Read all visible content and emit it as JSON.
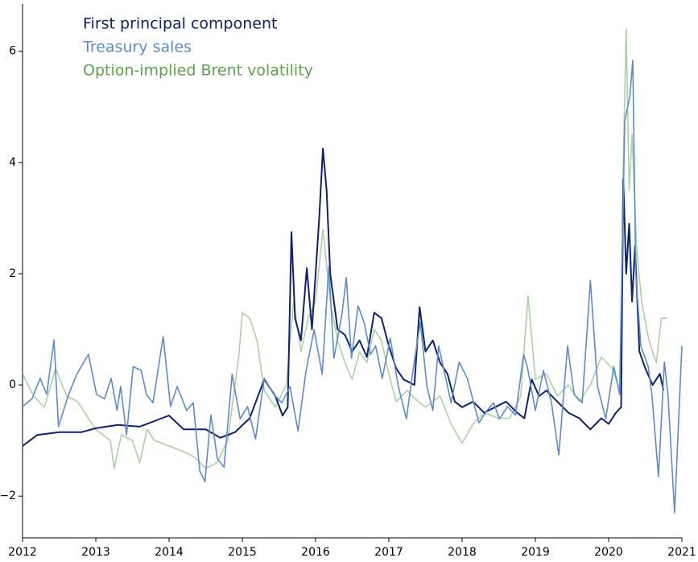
{
  "chart_data": {
    "type": "line",
    "xlim": [
      2012,
      2021
    ],
    "xticks": [
      2012,
      2013,
      2014,
      2015,
      2016,
      2017,
      2018,
      2019,
      2020,
      2021
    ],
    "ylim": [
      -2.75,
      6.85
    ],
    "yticks": [
      {
        "value": -2,
        "label": "−2"
      },
      0,
      2,
      4,
      6
    ],
    "grid": false,
    "legend": "upper left",
    "series": [
      {
        "name": "First principal component",
        "color": "#0d2270",
        "x": [
          2012.0,
          2012.2,
          2012.5,
          2012.8,
          2013.0,
          2013.3,
          2013.6,
          2013.9,
          2014.0,
          2014.2,
          2014.5,
          2014.7,
          2014.9,
          2015.1,
          2015.3,
          2015.45,
          2015.55,
          2015.62,
          2015.67,
          2015.72,
          2015.8,
          2015.88,
          2015.95,
          2016.0,
          2016.05,
          2016.1,
          2016.15,
          2016.2,
          2016.3,
          2016.4,
          2016.5,
          2016.6,
          2016.7,
          2016.8,
          2016.9,
          2017.0,
          2017.1,
          2017.2,
          2017.35,
          2017.42,
          2017.5,
          2017.6,
          2017.7,
          2017.8,
          2017.9,
          2018.0,
          2018.15,
          2018.3,
          2018.45,
          2018.6,
          2018.75,
          2018.85,
          2018.95,
          2019.05,
          2019.15,
          2019.3,
          2019.45,
          2019.6,
          2019.75,
          2019.9,
          2020.0,
          2020.1,
          2020.17,
          2020.2,
          2020.24,
          2020.28,
          2020.32,
          2020.36,
          2020.42,
          2020.5,
          2020.6,
          2020.7,
          2020.75
        ],
        "values": [
          -1.1,
          -0.9,
          -0.85,
          -0.85,
          -0.78,
          -0.72,
          -0.75,
          -0.6,
          -0.55,
          -0.8,
          -0.8,
          -0.95,
          -0.85,
          -0.6,
          0.1,
          -0.2,
          -0.55,
          -0.4,
          2.75,
          1.2,
          0.8,
          2.1,
          1.0,
          2.0,
          3.0,
          4.25,
          3.5,
          2.0,
          1.0,
          0.9,
          0.6,
          0.8,
          0.5,
          1.3,
          1.2,
          0.7,
          0.3,
          0.1,
          0.0,
          1.4,
          0.6,
          0.8,
          0.4,
          0.2,
          -0.3,
          -0.4,
          -0.3,
          -0.5,
          -0.4,
          -0.3,
          -0.5,
          -0.6,
          0.1,
          -0.2,
          -0.1,
          -0.3,
          -0.5,
          -0.6,
          -0.8,
          -0.6,
          -0.7,
          -0.5,
          -0.4,
          3.7,
          2.0,
          2.9,
          1.5,
          2.5,
          0.6,
          0.3,
          0.0,
          0.2,
          -0.1
        ]
      },
      {
        "name": "Treasury sales",
        "color": "#5b8bd0",
        "x": [
          2012.0,
          2012.13,
          2012.24,
          2012.33,
          2012.43,
          2012.49,
          2012.63,
          2012.74,
          2012.9,
          2013.01,
          2013.12,
          2013.21,
          2013.29,
          2013.34,
          2013.42,
          2013.51,
          2013.62,
          2013.69,
          2013.78,
          2013.92,
          2014.02,
          2014.11,
          2014.24,
          2014.33,
          2014.42,
          2014.49,
          2014.57,
          2014.66,
          2014.75,
          2014.86,
          2014.97,
          2015.07,
          2015.18,
          2015.3,
          2015.43,
          2015.54,
          2015.65,
          2015.76,
          2015.87,
          2015.98,
          2016.09,
          2016.18,
          2016.25,
          2016.36,
          2016.42,
          2016.49,
          2016.58,
          2016.66,
          2016.75,
          2016.82,
          2016.91,
          2017.02,
          2017.13,
          2017.24,
          2017.33,
          2017.43,
          2017.52,
          2017.6,
          2017.68,
          2017.85,
          2017.96,
          2018.07,
          2018.23,
          2018.34,
          2018.43,
          2018.51,
          2018.62,
          2018.73,
          2018.84,
          2018.89,
          2019.0,
          2019.11,
          2019.22,
          2019.32,
          2019.44,
          2019.53,
          2019.64,
          2019.75,
          2019.85,
          2019.96,
          2020.07,
          2020.15,
          2020.22,
          2020.29,
          2020.33,
          2020.37,
          2020.44,
          2020.54,
          2020.59,
          2020.68,
          2020.76,
          2020.81,
          2020.9,
          2021.0
        ],
        "values": [
          -0.39,
          -0.25,
          0.12,
          -0.17,
          0.81,
          -0.75,
          -0.17,
          0.19,
          0.55,
          -0.17,
          -0.25,
          0.12,
          -0.46,
          -0.03,
          -0.9,
          0.33,
          0.26,
          -0.17,
          -0.32,
          0.87,
          -0.39,
          -0.03,
          -0.46,
          -0.32,
          -1.55,
          -1.74,
          -0.54,
          -1.33,
          -1.48,
          0.19,
          -0.61,
          -0.39,
          -0.97,
          0.12,
          -0.17,
          -0.32,
          -0.03,
          -0.83,
          0.26,
          0.99,
          0.19,
          2.14,
          0.48,
          1.28,
          1.93,
          0.48,
          1.42,
          1.13,
          0.55,
          0.7,
          0.12,
          0.84,
          -0.03,
          -0.61,
          0.26,
          1.13,
          -0.03,
          -0.46,
          0.7,
          -0.32,
          0.41,
          0.12,
          -0.68,
          -0.46,
          -0.32,
          -0.61,
          -0.39,
          -0.54,
          0.55,
          0.33,
          -0.46,
          0.26,
          -0.32,
          -1.26,
          0.7,
          -0.17,
          -0.32,
          1.88,
          -0.03,
          -0.61,
          0.33,
          -0.17,
          4.75,
          5.19,
          5.84,
          2.0,
          0.7,
          0.33,
          -0.17,
          -1.65,
          0.41,
          -0.17,
          -2.3,
          0.7
        ]
      },
      {
        "name": "Option-implied Brent volatility",
        "color": "#5aa548",
        "x": [
          2012.0,
          2012.15,
          2012.3,
          2012.45,
          2012.6,
          2012.75,
          2012.9,
          2013.0,
          2013.2,
          2013.25,
          2013.35,
          2013.5,
          2013.6,
          2013.7,
          2013.8,
          2014.0,
          2014.2,
          2014.35,
          2014.5,
          2014.65,
          2014.8,
          2014.95,
          2015.0,
          2015.1,
          2015.2,
          2015.3,
          2015.45,
          2015.6,
          2015.7,
          2015.8,
          2015.9,
          2016.0,
          2016.1,
          2016.2,
          2016.3,
          2016.4,
          2016.5,
          2016.6,
          2016.7,
          2016.8,
          2016.9,
          2017.0,
          2017.1,
          2017.25,
          2017.4,
          2017.5,
          2017.7,
          2017.85,
          2018.0,
          2018.15,
          2018.3,
          2018.5,
          2018.65,
          2018.8,
          2018.9,
          2019.0,
          2019.15,
          2019.3,
          2019.45,
          2019.6,
          2019.75,
          2019.9,
          2020.05,
          2020.15,
          2020.2,
          2020.24,
          2020.28,
          2020.32,
          2020.38,
          2020.45,
          2020.55,
          2020.65,
          2020.72,
          2020.8
        ],
        "values": [
          0.2,
          -0.2,
          -0.4,
          0.3,
          -0.2,
          -0.3,
          -0.6,
          -0.8,
          -1.0,
          -1.5,
          -0.9,
          -1.0,
          -1.4,
          -0.8,
          -1.0,
          -1.1,
          -1.2,
          -1.3,
          -1.5,
          -1.4,
          -1.0,
          0.5,
          1.3,
          1.2,
          0.8,
          -0.1,
          -0.4,
          0.0,
          1.5,
          0.6,
          1.2,
          1.5,
          2.8,
          1.5,
          0.8,
          0.4,
          0.1,
          0.6,
          0.4,
          1.0,
          0.8,
          0.2,
          -0.3,
          -0.1,
          -0.3,
          -0.4,
          -0.2,
          -0.7,
          -1.05,
          -0.7,
          -0.5,
          -0.6,
          -0.6,
          -0.2,
          1.6,
          0.1,
          0.2,
          -0.2,
          0.0,
          -0.3,
          0.0,
          0.5,
          0.3,
          -0.1,
          4.0,
          6.4,
          3.5,
          4.5,
          2.5,
          1.5,
          0.8,
          0.4,
          1.2,
          1.2
        ]
      }
    ]
  }
}
